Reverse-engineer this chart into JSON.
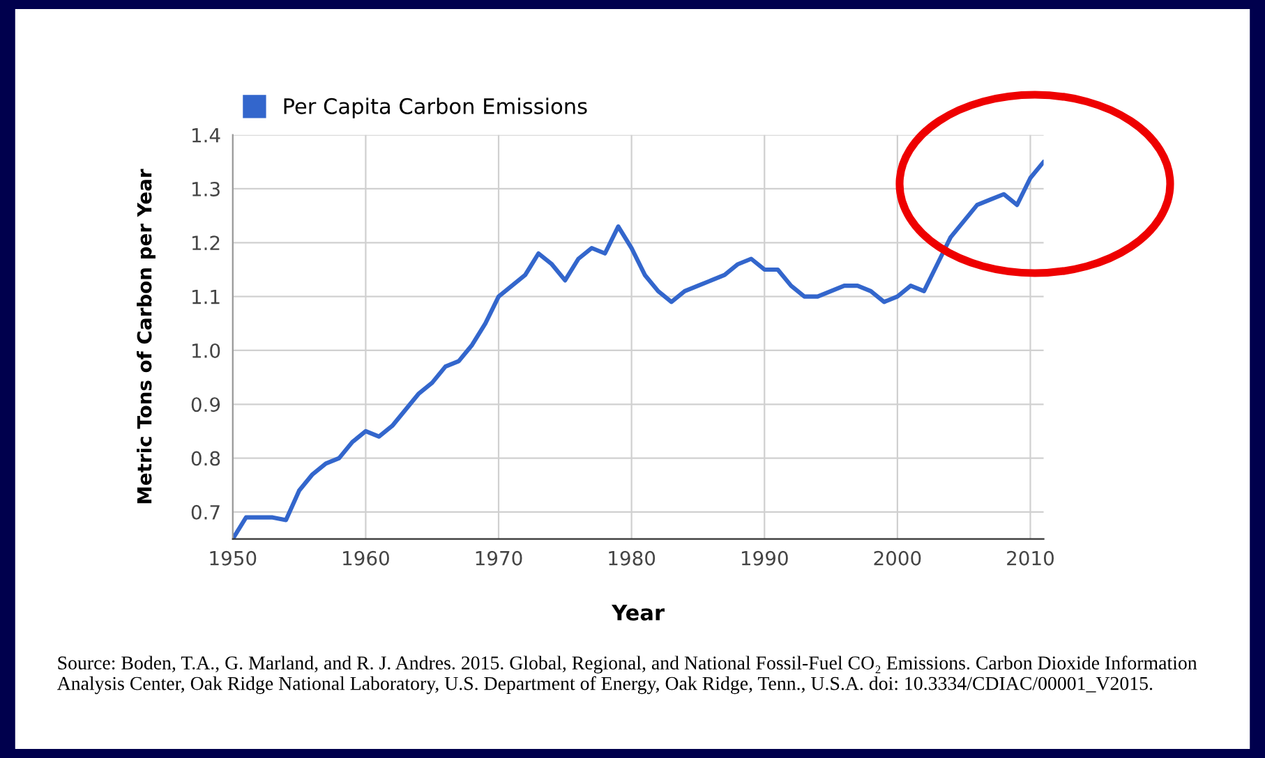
{
  "chart_data": {
    "type": "line",
    "xlabel": "Year",
    "ylabel": "Metric Tons of Carbon per Year",
    "x": [
      1950,
      1951,
      1952,
      1953,
      1954,
      1955,
      1956,
      1957,
      1958,
      1959,
      1960,
      1961,
      1962,
      1963,
      1964,
      1965,
      1966,
      1967,
      1968,
      1969,
      1970,
      1971,
      1972,
      1973,
      1974,
      1975,
      1976,
      1977,
      1978,
      1979,
      1980,
      1981,
      1982,
      1983,
      1984,
      1985,
      1986,
      1987,
      1988,
      1989,
      1990,
      1991,
      1992,
      1993,
      1994,
      1995,
      1996,
      1997,
      1998,
      1999,
      2000,
      2001,
      2002,
      2003,
      2004,
      2005,
      2006,
      2007,
      2008,
      2009,
      2010,
      2011
    ],
    "series": [
      {
        "name": "Per Capita Carbon Emissions",
        "color": "#3366cc",
        "values": [
          0.65,
          0.69,
          0.69,
          0.69,
          0.685,
          0.74,
          0.77,
          0.79,
          0.8,
          0.83,
          0.85,
          0.84,
          0.86,
          0.89,
          0.92,
          0.94,
          0.97,
          0.98,
          1.01,
          1.05,
          1.1,
          1.12,
          1.14,
          1.18,
          1.16,
          1.13,
          1.17,
          1.19,
          1.18,
          1.23,
          1.19,
          1.14,
          1.11,
          1.09,
          1.11,
          1.12,
          1.13,
          1.14,
          1.16,
          1.17,
          1.15,
          1.15,
          1.12,
          1.1,
          1.1,
          1.11,
          1.12,
          1.12,
          1.11,
          1.09,
          1.1,
          1.12,
          1.11,
          1.16,
          1.21,
          1.24,
          1.27,
          1.28,
          1.29,
          1.27,
          1.32,
          1.35
        ]
      }
    ],
    "xlim": [
      1950,
      2011
    ],
    "xticks": [
      1950,
      1960,
      1970,
      1980,
      1990,
      2000,
      2010
    ],
    "ylim": [
      0.65,
      1.4
    ],
    "yticks": [
      {
        "value": 0.7,
        "label": "0.7"
      },
      {
        "value": 0.8,
        "label": "0.8"
      },
      {
        "value": 0.9,
        "label": "0.9"
      },
      {
        "value": 1.0,
        "label": "1.0"
      },
      {
        "value": 1.1,
        "label": "1.1"
      },
      {
        "value": 1.2,
        "label": "1.2"
      },
      {
        "value": 1.3,
        "label": "1.3"
      },
      {
        "value": 1.4,
        "label": "1.4"
      }
    ],
    "grid": true,
    "legend": "top left",
    "marker": "none",
    "line_style": "solid",
    "annotations": [
      "Source: Boden, T.A., G. Marland, and R. J. Andres. 2015. Global, Regional, and National Fossil-Fuel CO₂ Emissions. Carbon Dioxide Information Analysis Center, Oak Ridge National Laboratory, U.S. Department of Energy, Oak Ridge, Tenn., U.S.A. doi: 10.3334/CDIAC/00001_V2015."
    ]
  }
}
